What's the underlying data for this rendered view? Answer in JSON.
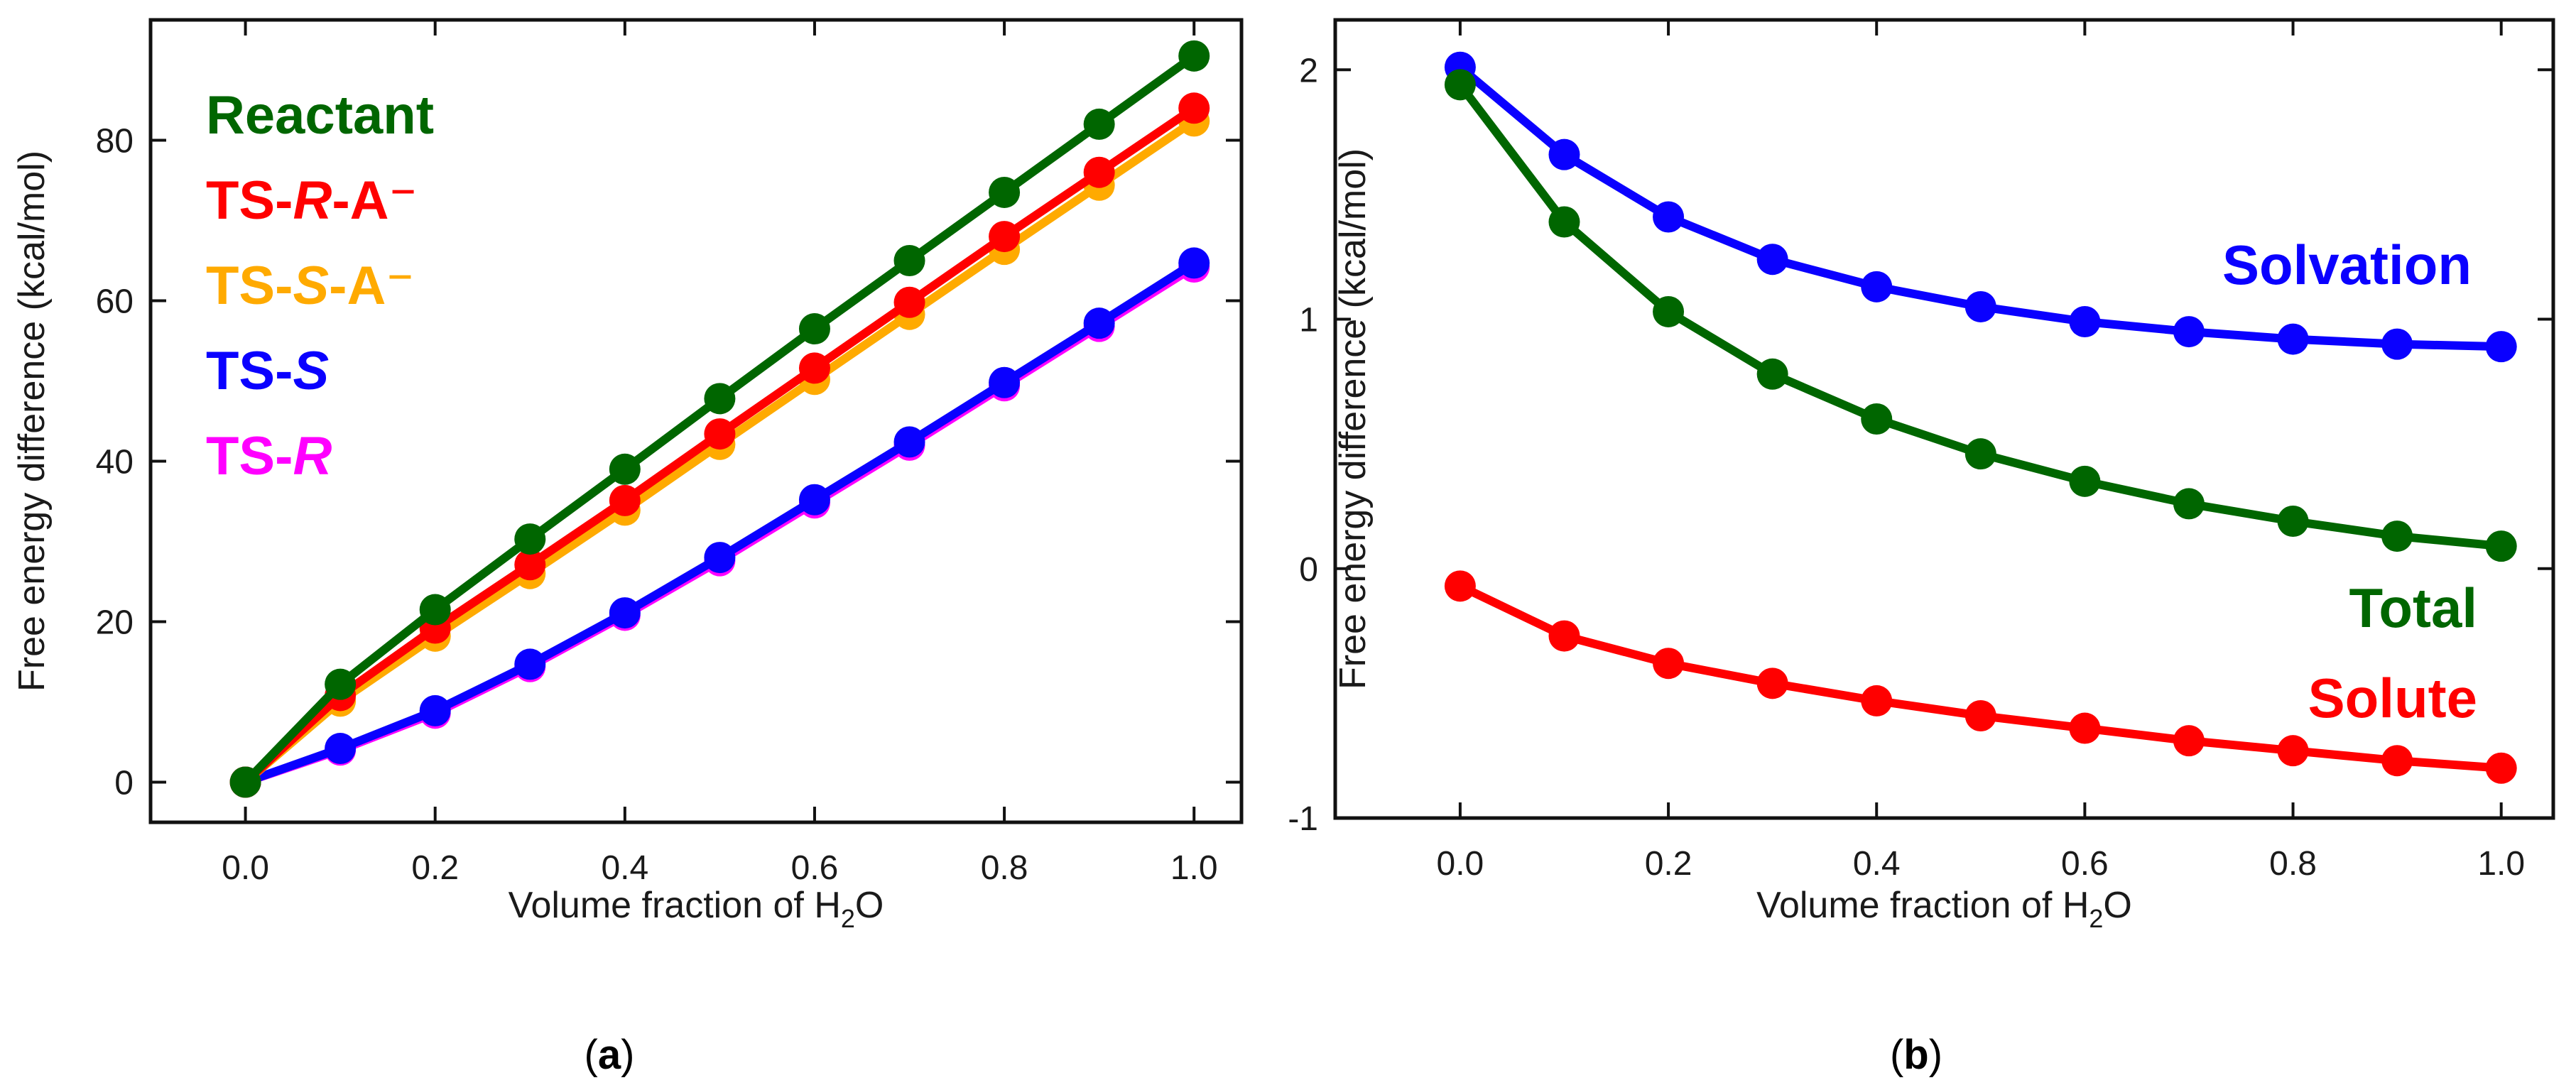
{
  "chart_data": [
    {
      "panel": "a",
      "caption_letter": "a",
      "type": "line",
      "xlabel_main": "Volume fraction of H",
      "xlabel_sub": "2",
      "xlabel_end": "O",
      "ylabel": "Free energy difference (kcal/mol)",
      "xlim": [
        -0.1,
        1.05
      ],
      "ylim": [
        -5,
        95
      ],
      "xticks": [
        0.0,
        0.2,
        0.4,
        0.6,
        0.8,
        1.0
      ],
      "xtick_labels": [
        "0.0",
        "0.2",
        "0.4",
        "0.6",
        "0.8",
        "1.0"
      ],
      "yticks": [
        0,
        20,
        40,
        60,
        80
      ],
      "ytick_labels": [
        "0",
        "20",
        "40",
        "60",
        "80"
      ],
      "grid": false,
      "legend_position": "top-left",
      "x": [
        0.0,
        0.1,
        0.2,
        0.3,
        0.4,
        0.5,
        0.6,
        0.7,
        0.8,
        0.9,
        1.0
      ],
      "series": [
        {
          "name": "TS-R",
          "legend": [
            "TS-",
            "R",
            ""
          ],
          "color": "#ff00ff",
          "values": [
            0.0,
            4.0,
            8.6,
            14.4,
            20.8,
            27.6,
            34.8,
            42.0,
            49.4,
            56.8,
            64.2
          ]
        },
        {
          "name": "TS-S",
          "legend": [
            "TS-",
            "S",
            ""
          ],
          "color": "#0a00ff",
          "values": [
            0.0,
            4.2,
            8.9,
            14.7,
            21.1,
            28.0,
            35.2,
            42.4,
            49.8,
            57.2,
            64.7
          ]
        },
        {
          "name": "TS-S-A⁻",
          "legend": [
            "TS-",
            "S",
            "-A⁻"
          ],
          "color": "#ffaa00",
          "values": [
            0.0,
            10.1,
            18.2,
            26.0,
            33.9,
            42.1,
            50.2,
            58.3,
            66.4,
            74.4,
            82.4
          ]
        },
        {
          "name": "TS-R-A⁻",
          "legend": [
            "TS-",
            "R",
            "-A⁻"
          ],
          "color": "#ff0000",
          "values": [
            0.0,
            10.8,
            19.2,
            27.1,
            35.1,
            43.4,
            51.6,
            59.8,
            68.0,
            76.0,
            84.0
          ]
        },
        {
          "name": "Reactant",
          "legend": [
            "Reactant",
            "",
            ""
          ],
          "color": "#006600",
          "values": [
            0.0,
            12.2,
            21.5,
            30.3,
            39.0,
            47.8,
            56.5,
            65.0,
            73.5,
            82.0,
            90.5
          ]
        }
      ],
      "legend_order": [
        "Reactant",
        "TS-R-A⁻",
        "TS-S-A⁻",
        "TS-S",
        "TS-R"
      ]
    },
    {
      "panel": "b",
      "caption_letter": "b",
      "type": "line",
      "xlabel_main": "Volume fraction of H",
      "xlabel_sub": "2",
      "xlabel_end": "O",
      "ylabel": "Free energy difference (kcal/mol)",
      "xlim": [
        -0.12,
        1.05
      ],
      "ylim": [
        -1.0,
        2.2
      ],
      "xticks": [
        0.0,
        0.2,
        0.4,
        0.6,
        0.8,
        1.0
      ],
      "xtick_labels": [
        "0.0",
        "0.2",
        "0.4",
        "0.6",
        "0.8",
        "1.0"
      ],
      "yticks": [
        -1,
        0,
        1,
        2
      ],
      "ytick_labels": [
        "-1",
        "0",
        "1",
        "2"
      ],
      "grid": false,
      "legend_position": "right",
      "x": [
        0.0,
        0.1,
        0.2,
        0.3,
        0.4,
        0.5,
        0.6,
        0.7,
        0.8,
        0.9,
        1.0
      ],
      "series": [
        {
          "name": "Solvation",
          "color": "#0a00ff",
          "values": [
            2.01,
            1.66,
            1.41,
            1.24,
            1.13,
            1.05,
            0.99,
            0.95,
            0.92,
            0.9,
            0.89
          ]
        },
        {
          "name": "Total",
          "color": "#006600",
          "values": [
            1.94,
            1.39,
            1.03,
            0.78,
            0.6,
            0.46,
            0.35,
            0.26,
            0.19,
            0.13,
            0.09
          ]
        },
        {
          "name": "Solute",
          "color": "#ff0000",
          "values": [
            -0.07,
            -0.27,
            -0.38,
            -0.46,
            -0.53,
            -0.59,
            -0.64,
            -0.69,
            -0.73,
            -0.77,
            -0.8
          ]
        }
      ]
    }
  ]
}
